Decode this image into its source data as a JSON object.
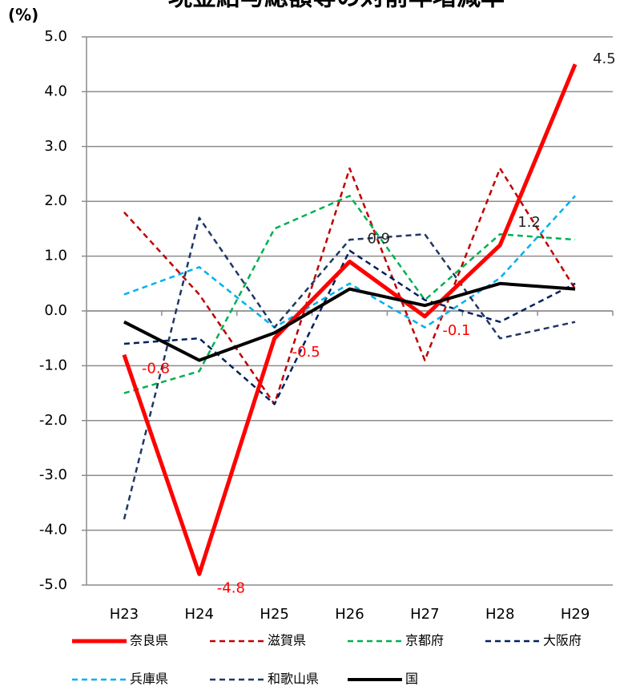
{
  "chart_data": {
    "type": "line",
    "title": "現金給与総額等の対前年増減率",
    "y_unit": "(%)",
    "categories": [
      "H23",
      "H24",
      "H25",
      "H26",
      "H27",
      "H28",
      "H29"
    ],
    "ylim": [
      -5,
      5
    ],
    "yticks": [
      {
        "value": -5,
        "label": "-5.0"
      },
      {
        "value": -4,
        "label": "-4.0"
      },
      {
        "value": -3,
        "label": "-3.0"
      },
      {
        "value": -2,
        "label": "-2.0"
      },
      {
        "value": -1,
        "label": "-1.0"
      },
      {
        "value": 0,
        "label": "0.0"
      },
      {
        "value": 1,
        "label": "1.0"
      },
      {
        "value": 2,
        "label": "2.0"
      },
      {
        "value": 3,
        "label": "3.0"
      },
      {
        "value": 4,
        "label": "4.0"
      },
      {
        "value": 5,
        "label": "5.0"
      }
    ],
    "grid": true,
    "legend": "bottom",
    "series": [
      {
        "name": "奈良県",
        "color": "#ff0000",
        "width": 5,
        "dash": "",
        "values": [
          -0.8,
          -4.8,
          -0.5,
          0.9,
          -0.1,
          1.2,
          4.5
        ],
        "value_labels": [
          "-0.8",
          "-4.8",
          "-0.5",
          "0.9",
          "-0.1",
          "1.2",
          "4.5"
        ],
        "value_label_colors": [
          "#ff0000",
          "#ff0000",
          "#ff0000",
          "#222222",
          "#ff0000",
          "#222222",
          "#222222"
        ]
      },
      {
        "name": "滋賀県",
        "color": "#c00000",
        "width": 2.5,
        "dash": "7 5",
        "values": [
          1.8,
          0.3,
          -1.7,
          2.6,
          -0.9,
          2.6,
          0.4
        ]
      },
      {
        "name": "京都府",
        "color": "#00b050",
        "width": 2.5,
        "dash": "7 5",
        "values": [
          -1.5,
          -1.1,
          1.5,
          2.1,
          0.2,
          1.4,
          1.3
        ]
      },
      {
        "name": "大阪府",
        "color": "#002060",
        "width": 2.5,
        "dash": "7 5",
        "values": [
          -0.6,
          -0.5,
          -1.7,
          1.1,
          0.2,
          -0.2,
          0.5
        ]
      },
      {
        "name": "兵庫県",
        "color": "#00b0f0",
        "width": 2.5,
        "dash": "7 5",
        "values": [
          0.3,
          0.8,
          -0.3,
          0.5,
          -0.3,
          0.6,
          2.1
        ]
      },
      {
        "name": "和歌山県",
        "color": "#1f3864",
        "width": 2.5,
        "dash": "7 5",
        "values": [
          -3.8,
          1.7,
          -0.3,
          1.3,
          1.4,
          -0.5,
          -0.2
        ]
      },
      {
        "name": "国",
        "color": "#000000",
        "width": 4,
        "dash": "",
        "values": [
          -0.2,
          -0.9,
          -0.4,
          0.4,
          0.1,
          0.5,
          0.4
        ]
      }
    ]
  }
}
